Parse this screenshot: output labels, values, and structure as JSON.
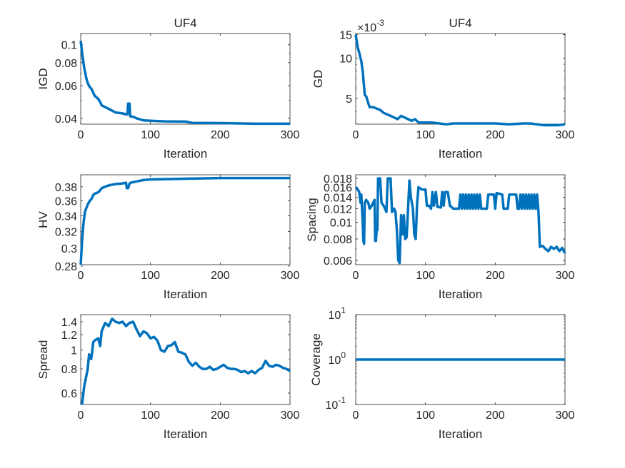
{
  "chart_data": [
    {
      "type": "line",
      "title": "UF4",
      "xlabel": "Iteration",
      "ylabel": "IGD",
      "xlim": [
        0,
        300
      ],
      "ylim": [
        0.0372,
        0.115
      ],
      "yscale": "log",
      "grid": false,
      "xticks": [
        {
          "v": 0,
          "label": "0"
        },
        {
          "v": 100,
          "label": "100"
        },
        {
          "v": 200,
          "label": "200"
        },
        {
          "v": 300,
          "label": "300"
        }
      ],
      "yticks": [
        {
          "v": 0.04,
          "label": "0.04"
        },
        {
          "v": 0.06,
          "label": "0.06"
        },
        {
          "v": 0.08,
          "label": "0.08"
        },
        {
          "v": 0.1,
          "label": "0.1"
        }
      ],
      "color": "#0072BD",
      "x": [
        0,
        2,
        5,
        8,
        10,
        13,
        15,
        18,
        20,
        25,
        28,
        30,
        35,
        40,
        45,
        50,
        55,
        60,
        65,
        67,
        68,
        70,
        71,
        75,
        80,
        90,
        100,
        120,
        150,
        160,
        200,
        250,
        300
      ],
      "y": [
        0.105,
        0.09,
        0.075,
        0.066,
        0.062,
        0.059,
        0.058,
        0.055,
        0.053,
        0.051,
        0.049,
        0.047,
        0.046,
        0.045,
        0.044,
        0.043,
        0.0428,
        0.0425,
        0.042,
        0.042,
        0.048,
        0.048,
        0.041,
        0.0408,
        0.04,
        0.039,
        0.0388,
        0.0385,
        0.0384,
        0.0378,
        0.0377,
        0.0374,
        0.0374
      ]
    },
    {
      "type": "line",
      "title": "UF4",
      "xlabel": "Iteration",
      "ylabel": "GD",
      "y_multiplier": {
        "base": "×10",
        "exp": "-3"
      },
      "xlim": [
        0,
        300
      ],
      "ylim": [
        3.21,
        15.3
      ],
      "yscale": "log",
      "grid": false,
      "xticks": [
        {
          "v": 0,
          "label": "0"
        },
        {
          "v": 100,
          "label": "100"
        },
        {
          "v": 200,
          "label": "200"
        },
        {
          "v": 300,
          "label": "300"
        }
      ],
      "yticks": [
        {
          "v": 5,
          "label": "5"
        },
        {
          "v": 10,
          "label": "10"
        },
        {
          "v": 15,
          "label": "15"
        }
      ],
      "color": "#0072BD",
      "x": [
        0,
        3,
        5,
        8,
        10,
        13,
        15,
        18,
        20,
        25,
        30,
        35,
        40,
        45,
        50,
        55,
        60,
        65,
        70,
        75,
        80,
        85,
        90,
        100,
        110,
        120,
        130,
        140,
        160,
        180,
        200,
        220,
        240,
        250,
        260,
        270,
        280,
        290,
        300
      ],
      "y": [
        15,
        12,
        11,
        9.5,
        8,
        5.3,
        5.2,
        4.6,
        4.3,
        4.3,
        4.2,
        4.1,
        3.9,
        3.8,
        3.7,
        3.6,
        3.5,
        3.7,
        3.6,
        3.5,
        3.4,
        3.5,
        3.3,
        3.3,
        3.3,
        3.25,
        3.2,
        3.25,
        3.25,
        3.25,
        3.25,
        3.2,
        3.25,
        3.25,
        3.2,
        3.15,
        3.15,
        3.15,
        3.2
      ]
    },
    {
      "type": "line",
      "title": "",
      "xlabel": "Iteration",
      "ylabel": "HV",
      "xlim": [
        0,
        300
      ],
      "ylim": [
        0.2815,
        0.398
      ],
      "yscale": "log",
      "grid": false,
      "xticks": [
        {
          "v": 0,
          "label": "0"
        },
        {
          "v": 100,
          "label": "100"
        },
        {
          "v": 200,
          "label": "200"
        },
        {
          "v": 300,
          "label": "300"
        }
      ],
      "yticks": [
        {
          "v": 0.28,
          "label": "0.28"
        },
        {
          "v": 0.3,
          "label": "0.3"
        },
        {
          "v": 0.32,
          "label": "0.32"
        },
        {
          "v": 0.34,
          "label": "0.34"
        },
        {
          "v": 0.36,
          "label": "0.36"
        },
        {
          "v": 0.38,
          "label": "0.38"
        }
      ],
      "color": "#0072BD",
      "x": [
        0,
        2,
        4,
        6,
        8,
        10,
        13,
        15,
        18,
        20,
        25,
        28,
        30,
        35,
        40,
        50,
        60,
        65,
        66,
        68,
        70,
        72,
        80,
        90,
        100,
        150,
        200,
        250,
        300
      ],
      "y": [
        0.2815,
        0.31,
        0.33,
        0.345,
        0.35,
        0.355,
        0.36,
        0.362,
        0.368,
        0.37,
        0.372,
        0.375,
        0.378,
        0.38,
        0.382,
        0.384,
        0.385,
        0.386,
        0.378,
        0.378,
        0.385,
        0.386,
        0.388,
        0.39,
        0.391,
        0.392,
        0.393,
        0.393,
        0.393
      ]
    },
    {
      "type": "line",
      "title": "",
      "xlabel": "Iteration",
      "ylabel": "Spacing",
      "xlim": [
        0,
        300
      ],
      "ylim": [
        0.00567,
        0.0189
      ],
      "yscale": "log",
      "grid": false,
      "xticks": [
        {
          "v": 0,
          "label": "0"
        },
        {
          "v": 100,
          "label": "100"
        },
        {
          "v": 200,
          "label": "200"
        },
        {
          "v": 300,
          "label": "300"
        }
      ],
      "yticks": [
        {
          "v": 0.006,
          "label": "0.006"
        },
        {
          "v": 0.008,
          "label": "0.008"
        },
        {
          "v": 0.01,
          "label": "0.01"
        },
        {
          "v": 0.012,
          "label": "0.012"
        },
        {
          "v": 0.014,
          "label": "0.014"
        },
        {
          "v": 0.016,
          "label": "0.016"
        },
        {
          "v": 0.018,
          "label": "0.018"
        }
      ],
      "color": "#0072BD",
      "x": [
        0,
        3,
        5,
        7,
        8,
        10,
        11,
        12,
        13,
        15,
        18,
        20,
        23,
        25,
        27,
        28,
        29,
        30,
        31,
        32,
        35,
        37,
        40,
        42,
        44,
        46,
        50,
        52,
        55,
        57,
        59,
        61,
        63,
        65,
        67,
        69,
        71,
        73,
        75,
        77,
        79,
        82,
        84,
        86,
        88,
        90,
        95,
        100,
        102,
        105,
        108,
        110,
        112,
        115,
        117,
        122,
        124,
        126,
        128,
        132,
        135,
        140,
        148,
        150,
        152,
        154,
        156,
        158,
        160,
        162,
        164,
        166,
        168,
        170,
        172,
        174,
        176,
        178,
        180,
        188,
        190,
        198,
        200,
        202,
        210,
        212,
        218,
        220,
        230,
        232,
        234,
        236,
        238,
        240,
        242,
        244,
        246,
        248,
        250,
        252,
        254,
        256,
        258,
        260,
        262,
        264,
        268,
        272,
        276,
        280,
        284,
        288,
        292,
        296,
        300
      ],
      "y": [
        0.016,
        0.0155,
        0.015,
        0.013,
        0.0145,
        0.01,
        0.0078,
        0.0075,
        0.013,
        0.0135,
        0.013,
        0.012,
        0.0125,
        0.013,
        0.0135,
        0.0078,
        0.0078,
        0.009,
        0.009,
        0.018,
        0.018,
        0.013,
        0.0125,
        0.012,
        0.0115,
        0.018,
        0.018,
        0.0115,
        0.012,
        0.0115,
        0.009,
        0.006,
        0.0058,
        0.011,
        0.0085,
        0.011,
        0.008,
        0.0082,
        0.012,
        0.0175,
        0.014,
        0.012,
        0.0085,
        0.008,
        0.0128,
        0.016,
        0.0155,
        0.0155,
        0.0125,
        0.0125,
        0.012,
        0.015,
        0.0125,
        0.015,
        0.0123,
        0.0122,
        0.015,
        0.0125,
        0.015,
        0.015,
        0.0125,
        0.012,
        0.012,
        0.0145,
        0.012,
        0.0145,
        0.012,
        0.0145,
        0.012,
        0.0145,
        0.012,
        0.0145,
        0.012,
        0.0145,
        0.012,
        0.0145,
        0.012,
        0.0145,
        0.012,
        0.012,
        0.0145,
        0.0145,
        0.012,
        0.0148,
        0.0145,
        0.012,
        0.012,
        0.0145,
        0.0145,
        0.012,
        0.012,
        0.0145,
        0.012,
        0.0145,
        0.012,
        0.0145,
        0.012,
        0.0145,
        0.012,
        0.0145,
        0.012,
        0.0145,
        0.012,
        0.0145,
        0.0115,
        0.0072,
        0.0073,
        0.007,
        0.0068,
        0.0072,
        0.007,
        0.0072,
        0.0068,
        0.0071,
        0.0066
      ]
    },
    {
      "type": "line",
      "title": "",
      "xlabel": "Iteration",
      "ylabel": "Spread",
      "xlim": [
        0,
        300
      ],
      "ylim": [
        0.524,
        1.524
      ],
      "yscale": "log",
      "grid": false,
      "xticks": [
        {
          "v": 0,
          "label": "0"
        },
        {
          "v": 100,
          "label": "100"
        },
        {
          "v": 200,
          "label": "200"
        },
        {
          "v": 300,
          "label": "300"
        }
      ],
      "yticks": [
        {
          "v": 0.6,
          "label": "0.6"
        },
        {
          "v": 0.8,
          "label": "0.8"
        },
        {
          "v": 1,
          "label": "1"
        },
        {
          "v": 1.2,
          "label": "1.2"
        },
        {
          "v": 1.4,
          "label": "1.4"
        }
      ],
      "color": "#0072BD",
      "x": [
        0,
        2,
        5,
        10,
        12,
        15,
        18,
        20,
        25,
        28,
        30,
        35,
        40,
        45,
        50,
        55,
        60,
        65,
        70,
        75,
        80,
        85,
        90,
        95,
        100,
        105,
        110,
        115,
        120,
        125,
        130,
        135,
        140,
        145,
        150,
        155,
        160,
        165,
        170,
        175,
        180,
        185,
        190,
        195,
        200,
        205,
        210,
        215,
        220,
        225,
        230,
        235,
        240,
        245,
        250,
        255,
        260,
        265,
        270,
        275,
        280,
        285,
        290,
        295,
        300
      ],
      "y": [
        0.53,
        0.53,
        0.65,
        0.8,
        0.95,
        0.9,
        1.1,
        1.12,
        1.15,
        1.05,
        1.25,
        1.38,
        1.33,
        1.45,
        1.4,
        1.38,
        1.4,
        1.33,
        1.38,
        1.4,
        1.28,
        1.18,
        1.25,
        1.22,
        1.15,
        1.17,
        1.12,
        1.0,
        0.98,
        1.05,
        1.06,
        1.1,
        0.98,
        0.97,
        0.95,
        0.87,
        0.83,
        0.86,
        0.82,
        0.8,
        0.8,
        0.82,
        0.79,
        0.8,
        0.82,
        0.84,
        0.81,
        0.8,
        0.8,
        0.79,
        0.77,
        0.78,
        0.76,
        0.78,
        0.76,
        0.79,
        0.81,
        0.88,
        0.83,
        0.82,
        0.84,
        0.83,
        0.81,
        0.8,
        0.78
      ]
    },
    {
      "type": "line",
      "title": "",
      "xlabel": "Iteration",
      "ylabel": "Coverage",
      "xlim": [
        0,
        300
      ],
      "ylim": [
        0.1,
        10
      ],
      "yscale": "log",
      "grid": false,
      "xticks": [
        {
          "v": 0,
          "label": "0"
        },
        {
          "v": 100,
          "label": "100"
        },
        {
          "v": 200,
          "label": "200"
        },
        {
          "v": 300,
          "label": "300"
        }
      ],
      "yticks": [
        {
          "v": 0.1,
          "label": "10",
          "exp": "-1"
        },
        {
          "v": 1,
          "label": "10",
          "exp": "0"
        },
        {
          "v": 10,
          "label": "10",
          "exp": "1"
        }
      ],
      "color": "#0072BD",
      "x": [
        0,
        300
      ],
      "y": [
        1,
        1
      ]
    }
  ]
}
